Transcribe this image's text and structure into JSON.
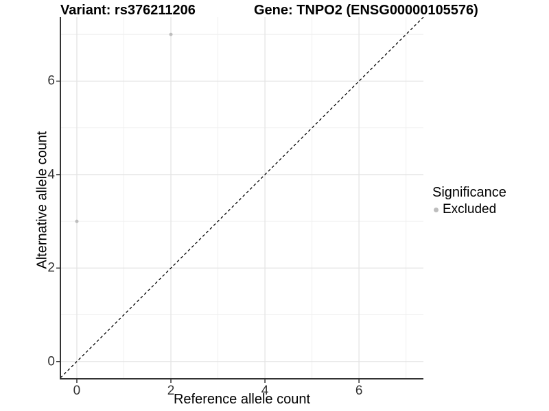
{
  "titles": {
    "variant": "Variant: rs376211206",
    "gene": "Gene: TNPO2 (ENSG00000105576)"
  },
  "chart_data": {
    "type": "scatter",
    "title_left": "Variant: rs376211206",
    "title_right": "Gene: TNPO2 (ENSG00000105576)",
    "xlabel": "Reference allele count",
    "ylabel": "Alternative allele count",
    "xlim": [
      -0.35,
      7.37
    ],
    "ylim": [
      -0.37,
      7.37
    ],
    "x_major_ticks": [
      0,
      2,
      4,
      6
    ],
    "y_major_ticks": [
      0,
      2,
      4,
      6
    ],
    "x_minor_gridlines": [
      1,
      3,
      5,
      7
    ],
    "y_minor_gridlines": [
      1,
      3,
      5,
      7
    ],
    "grid": true,
    "identity_line": {
      "type": "y=x",
      "style": "dashed",
      "color": "#000000"
    },
    "series": [
      {
        "name": "Excluded",
        "color": "#BDBDBD",
        "points": [
          {
            "x": 0,
            "y": 3
          },
          {
            "x": 2,
            "y": 7
          }
        ]
      }
    ],
    "legend": {
      "title": "Significance",
      "position": "right",
      "entries": [
        {
          "label": "Excluded",
          "color": "#BDBDBD"
        }
      ]
    },
    "style": {
      "point_color": "#BDBDBD",
      "axis_line_color": "#333333",
      "major_grid_color": "#E4E4E4",
      "minor_grid_color": "#EFEFEF",
      "tick_label_color": "#333333",
      "background": "#FFFFFF"
    }
  }
}
